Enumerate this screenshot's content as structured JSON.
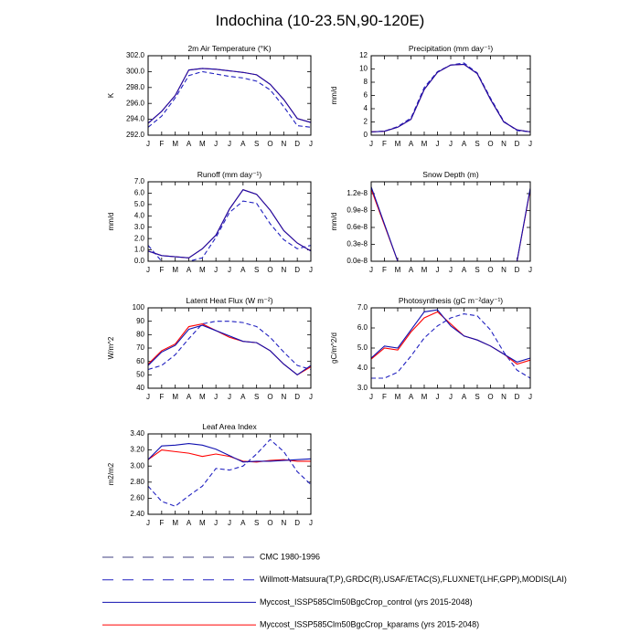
{
  "title": "Indochina (10-23.5N,90-120E)",
  "legend": [
    {
      "name": "CMC 1980-1996",
      "color": "#404080",
      "dash": true
    },
    {
      "name": "Willmott-Matsuura(T,P),GRDC(R),USAF/ETAC(S),FLUXNET(LHF,GPP),MODIS(LAI)",
      "color": "#2020c0",
      "dash": true
    },
    {
      "name": "Myccost_ISSP585Clm50BgcCrop_control (yrs 2015-2048)",
      "color": "#1010b0",
      "dash": false
    },
    {
      "name": "Myccost_ISSP585Clm50BgcCrop_kparams (yrs 2015-2048)",
      "color": "#ff0000",
      "dash": false
    }
  ],
  "chart_data": [
    {
      "type": "line",
      "title": "2m Air Temperature (°K)",
      "y_label": "K",
      "categories": [
        "J",
        "F",
        "M",
        "A",
        "M",
        "J",
        "J",
        "A",
        "S",
        "O",
        "N",
        "D",
        "J"
      ],
      "ylim": [
        292,
        302
      ],
      "yticks": [
        {
          "value": 292,
          "label": "292.0"
        },
        {
          "value": 294,
          "label": "294.0"
        },
        {
          "value": 296,
          "label": "296.0"
        },
        {
          "value": 298,
          "label": "298.0"
        },
        {
          "value": 300,
          "label": "300.0"
        },
        {
          "value": 302,
          "label": "302.0"
        }
      ],
      "series": [
        {
          "color": "#2020c0",
          "dash": true,
          "values": [
            293.0,
            294.4,
            296.7,
            299.5,
            300.0,
            299.7,
            299.4,
            299.2,
            298.8,
            297.7,
            295.6,
            293.2,
            293.0
          ]
        },
        {
          "color": "#ff0000",
          "dash": false,
          "values": [
            293.5,
            295.0,
            297.0,
            300.2,
            300.4,
            300.3,
            300.1,
            299.9,
            299.6,
            298.4,
            296.5,
            294.1,
            293.6
          ]
        },
        {
          "color": "#1010b0",
          "dash": false,
          "values": [
            293.5,
            295.0,
            297.0,
            300.2,
            300.4,
            300.3,
            300.1,
            299.9,
            299.6,
            298.4,
            296.5,
            294.1,
            293.6
          ]
        }
      ]
    },
    {
      "type": "line",
      "title": "Precipitation (mm day⁻¹)",
      "y_label": "mm/d",
      "categories": [
        "J",
        "F",
        "M",
        "A",
        "M",
        "J",
        "J",
        "A",
        "S",
        "O",
        "N",
        "D",
        "J"
      ],
      "ylim": [
        0,
        12
      ],
      "yticks": [
        0,
        2,
        4,
        6,
        8,
        10,
        12
      ],
      "series": [
        {
          "color": "#2020c0",
          "dash": true,
          "values": [
            0.5,
            0.6,
            1.3,
            2.6,
            7.2,
            9.6,
            10.6,
            10.9,
            9.4,
            5.6,
            2.1,
            0.7,
            0.5
          ]
        },
        {
          "color": "#ff0000",
          "dash": false,
          "values": [
            0.5,
            0.6,
            1.2,
            2.4,
            6.9,
            9.5,
            10.6,
            10.7,
            9.3,
            5.4,
            2.0,
            0.8,
            0.5
          ]
        },
        {
          "color": "#1010b0",
          "dash": false,
          "values": [
            0.5,
            0.6,
            1.2,
            2.4,
            6.9,
            9.5,
            10.6,
            10.7,
            9.3,
            5.4,
            2.0,
            0.8,
            0.5
          ]
        }
      ]
    },
    {
      "type": "line",
      "title": "Runoff (mm day⁻¹)",
      "y_label": "mm/d",
      "categories": [
        "J",
        "F",
        "M",
        "A",
        "M",
        "J",
        "J",
        "A",
        "S",
        "O",
        "N",
        "D",
        "J"
      ],
      "ylim": [
        0,
        7
      ],
      "yticks": [
        {
          "value": 0,
          "label": "0.0"
        },
        {
          "value": 1,
          "label": "1.0"
        },
        {
          "value": 2,
          "label": "2.0"
        },
        {
          "value": 3,
          "label": "3.0"
        },
        {
          "value": 4,
          "label": "4.0"
        },
        {
          "value": 5,
          "label": "5.0"
        },
        {
          "value": 6,
          "label": "6.0"
        },
        {
          "value": 7,
          "label": "7.0"
        }
      ],
      "series": [
        {
          "color": "#2020c0",
          "dash": true,
          "values": [
            1.4,
            0.0,
            0.0,
            0.0,
            0.3,
            2.1,
            4.3,
            5.3,
            5.1,
            3.3,
            1.9,
            1.1,
            1.4
          ]
        },
        {
          "color": "#ff0000",
          "dash": false,
          "values": [
            0.9,
            0.5,
            0.4,
            0.3,
            1.1,
            2.3,
            4.6,
            6.3,
            5.9,
            4.5,
            2.7,
            1.6,
            0.9
          ]
        },
        {
          "color": "#1010b0",
          "dash": false,
          "values": [
            0.9,
            0.5,
            0.4,
            0.3,
            1.1,
            2.3,
            4.6,
            6.3,
            5.9,
            4.5,
            2.7,
            1.6,
            0.9
          ]
        }
      ]
    },
    {
      "type": "line",
      "title": "Snow Depth (m)",
      "y_label": "mm/d",
      "categories": [
        "J",
        "F",
        "M",
        "A",
        "M",
        "J",
        "J",
        "A",
        "S",
        "O",
        "N",
        "D",
        "J"
      ],
      "ylim": [
        0,
        1.41e-08
      ],
      "yticks": [
        {
          "value": 0,
          "label": "0.0e-8"
        },
        {
          "value": 3e-09,
          "label": "0.3e-8"
        },
        {
          "value": 6e-09,
          "label": "0.6e-8"
        },
        {
          "value": 9e-09,
          "label": "0.9e-8"
        },
        {
          "value": 1.2e-08,
          "label": "1.2e-8"
        }
      ],
      "series": [
        {
          "color": "#ff0000",
          "dash": false,
          "values": [
            1.28e-08,
            6.4e-09,
            0,
            0,
            0,
            0,
            0,
            0,
            0,
            0,
            0,
            0,
            1.28e-08
          ]
        },
        {
          "color": "#1010b0",
          "dash": false,
          "values": [
            1.32e-08,
            6.6e-09,
            0,
            0,
            0,
            0,
            0,
            0,
            0,
            0,
            0,
            0,
            1.3e-08
          ]
        }
      ]
    },
    {
      "type": "line",
      "title": "Latent Heat Flux (W m⁻²)",
      "y_label": "W/m^2",
      "categories": [
        "J",
        "F",
        "M",
        "A",
        "M",
        "J",
        "J",
        "A",
        "S",
        "O",
        "N",
        "D",
        "J"
      ],
      "ylim": [
        40,
        100
      ],
      "yticks": [
        40,
        50,
        60,
        70,
        80,
        90,
        100
      ],
      "series": [
        {
          "color": "#2020c0",
          "dash": true,
          "values": [
            54,
            57,
            65,
            77,
            88,
            90,
            90,
            89,
            86,
            78,
            67,
            57,
            54
          ]
        },
        {
          "color": "#ff0000",
          "dash": false,
          "values": [
            58,
            68,
            73,
            86,
            88,
            83,
            78,
            75,
            74,
            68,
            58,
            50,
            56
          ]
        },
        {
          "color": "#1010b0",
          "dash": false,
          "values": [
            57,
            67,
            72,
            84,
            87,
            83,
            79,
            75,
            74,
            68,
            58,
            50,
            57
          ]
        }
      ]
    },
    {
      "type": "line",
      "title": "Photosynthesis (gC m⁻²day⁻¹)",
      "y_label": "gC/m^2/d",
      "categories": [
        "J",
        "F",
        "M",
        "A",
        "M",
        "J",
        "J",
        "A",
        "S",
        "O",
        "N",
        "D",
        "J"
      ],
      "ylim": [
        3,
        7
      ],
      "yticks": [
        {
          "value": 3,
          "label": "3.0"
        },
        {
          "value": 4,
          "label": "4.0"
        },
        {
          "value": 5,
          "label": "5.0"
        },
        {
          "value": 6,
          "label": "6.0"
        },
        {
          "value": 7,
          "label": "7.0"
        }
      ],
      "series": [
        {
          "color": "#2020c0",
          "dash": true,
          "values": [
            3.5,
            3.5,
            3.8,
            4.6,
            5.5,
            6.1,
            6.5,
            6.7,
            6.6,
            5.9,
            4.8,
            3.9,
            3.5
          ]
        },
        {
          "color": "#ff0000",
          "dash": false,
          "values": [
            4.45,
            5.0,
            4.9,
            5.8,
            6.5,
            6.8,
            6.2,
            5.6,
            5.4,
            5.1,
            4.7,
            4.2,
            4.4
          ]
        },
        {
          "color": "#1010b0",
          "dash": false,
          "values": [
            4.5,
            5.1,
            5.0,
            5.9,
            6.8,
            6.9,
            6.1,
            5.6,
            5.4,
            5.1,
            4.7,
            4.3,
            4.5
          ]
        }
      ]
    },
    {
      "type": "line",
      "title": "Leaf Area Index",
      "y_label": "m2/m2",
      "categories": [
        "J",
        "F",
        "M",
        "A",
        "M",
        "J",
        "J",
        "A",
        "S",
        "O",
        "N",
        "D",
        "J"
      ],
      "ylim": [
        2.4,
        3.4
      ],
      "yticks": [
        {
          "value": 2.4,
          "label": "2.40"
        },
        {
          "value": 2.6,
          "label": "2.60"
        },
        {
          "value": 2.8,
          "label": "2.80"
        },
        {
          "value": 3.0,
          "label": "3.00"
        },
        {
          "value": 3.2,
          "label": "3.20"
        },
        {
          "value": 3.4,
          "label": "3.40"
        }
      ],
      "series": [
        {
          "color": "#2020c0",
          "dash": true,
          "values": [
            2.75,
            2.56,
            2.5,
            2.63,
            2.75,
            2.97,
            2.95,
            3.0,
            3.15,
            3.33,
            3.18,
            2.93,
            2.77
          ]
        },
        {
          "color": "#ff0000",
          "dash": false,
          "values": [
            3.08,
            3.2,
            3.18,
            3.16,
            3.12,
            3.15,
            3.12,
            3.06,
            3.05,
            3.07,
            3.08,
            3.06,
            3.06
          ]
        },
        {
          "color": "#1010b0",
          "dash": false,
          "values": [
            3.08,
            3.25,
            3.26,
            3.28,
            3.26,
            3.21,
            3.13,
            3.05,
            3.06,
            3.06,
            3.07,
            3.08,
            3.09
          ]
        }
      ]
    }
  ]
}
